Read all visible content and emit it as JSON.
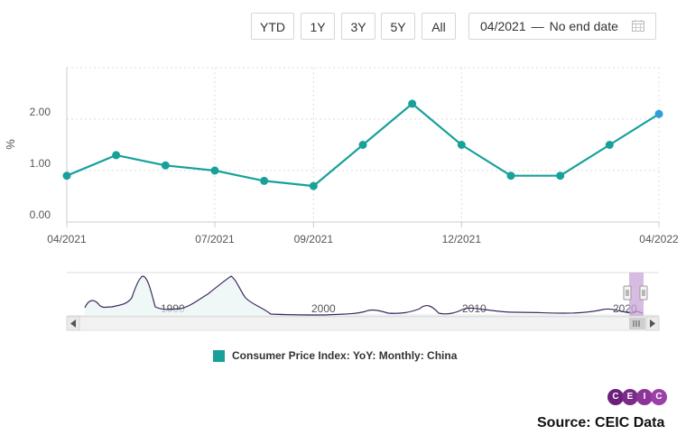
{
  "toolbar": {
    "buttons": [
      "YTD",
      "1Y",
      "3Y",
      "5Y",
      "All"
    ],
    "date_from": "04/2021",
    "date_separator": "—",
    "date_to": "No end date"
  },
  "colors": {
    "series": "#17a19a",
    "last_point": "#2e9fd8",
    "navigator_line": "#3b2a5e",
    "navigator_handle": "#c9a4d6",
    "logo": [
      "#6b1f7b",
      "#7a2a88",
      "#8a3597",
      "#9a40a6"
    ]
  },
  "chart_data": {
    "type": "line",
    "categories": [
      "04/2021",
      "05/2021",
      "06/2021",
      "07/2021",
      "08/2021",
      "09/2021",
      "10/2021",
      "11/2021",
      "12/2021",
      "01/2022",
      "02/2022",
      "03/2022",
      "04/2022"
    ],
    "series": [
      {
        "name": "Consumer Price Index: YoY: Monthly: China",
        "values": [
          0.9,
          1.3,
          1.1,
          1.0,
          0.8,
          0.7,
          1.5,
          2.3,
          1.5,
          0.9,
          0.9,
          1.5,
          2.1
        ]
      }
    ],
    "ylabel": "%",
    "ylim": [
      0,
      3
    ],
    "yticks": [
      "0.00",
      "1.00",
      "2.00"
    ],
    "xtick_labels": [
      "04/2021",
      "07/2021",
      "09/2021",
      "12/2021",
      "04/2022"
    ],
    "grid": true,
    "legend": "bottom-center"
  },
  "navigator": {
    "labels": [
      "1990",
      "2000",
      "2010",
      "2020"
    ]
  },
  "legend_label": "Consumer Price Index: YoY: Monthly: China",
  "logo_letters": [
    "C",
    "E",
    "I",
    "C"
  ],
  "source": "Source: CEIC Data"
}
